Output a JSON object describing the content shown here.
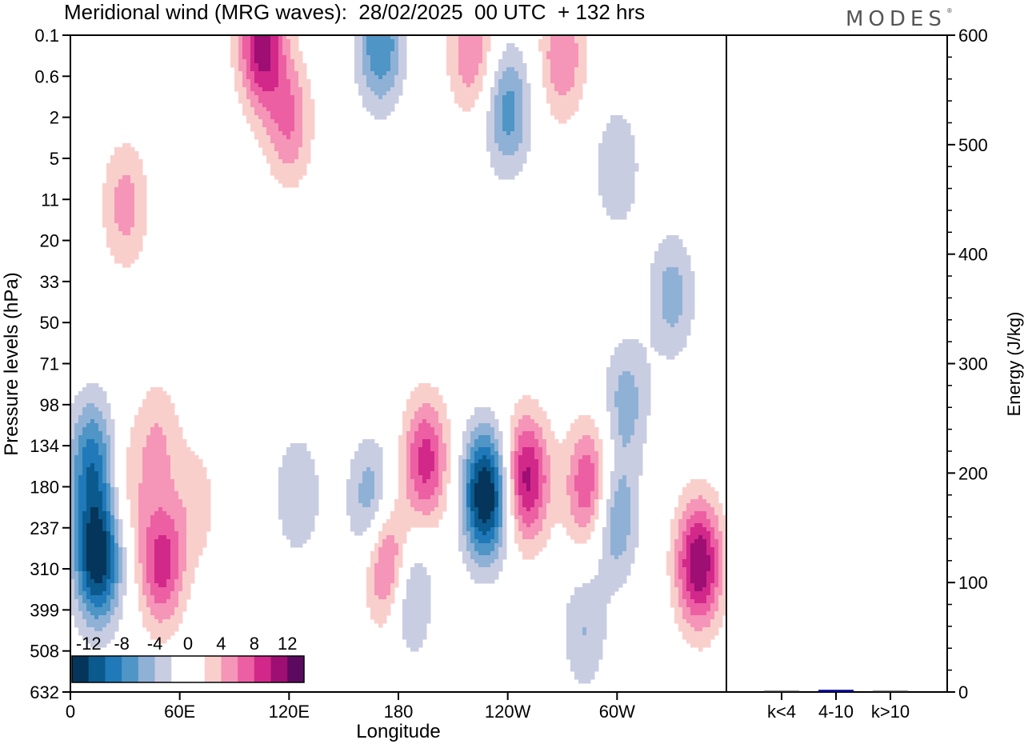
{
  "header": {
    "title": "Meridional wind (MRG waves):  28/02/2025  00 UTC  + 132 hrs",
    "brand": "MODES",
    "brand_mark": "®"
  },
  "chart_data": [
    {
      "type": "heatmap",
      "xlabel": "Longitude",
      "ylabel": "Pressure levels (hPa)",
      "x_ticks": [
        "0",
        "60E",
        "120E",
        "180",
        "120W",
        "60W"
      ],
      "y_ticks": [
        "0.1",
        "0.6",
        "2",
        "5",
        "11",
        "20",
        "33",
        "50",
        "71",
        "98",
        "134",
        "180",
        "237",
        "310",
        "399",
        "508",
        "632"
      ],
      "colorbar": {
        "labels": [
          "-12",
          "-8",
          "-4",
          "0",
          "4",
          "8",
          "12"
        ],
        "levels": [
          -14,
          -12,
          -10,
          -8,
          -6,
          -4,
          -2,
          0,
          2,
          4,
          6,
          8,
          10,
          12,
          14
        ],
        "colors": [
          "#05355a",
          "#0b5a8e",
          "#2079b8",
          "#4f95c5",
          "#8fb1d6",
          "#c9cde2",
          "#ffffff",
          "#ffffff",
          "#f9cfcc",
          "#f595b7",
          "#ec5fa3",
          "#d2288a",
          "#9e0e73",
          "#5c0a60"
        ]
      },
      "blobs": [
        {
          "lon": 15,
          "p": 290,
          "value": -14
        },
        {
          "lon": 12,
          "p": 150,
          "value": -9
        },
        {
          "lon": 30,
          "p": 180,
          "value": 3
        },
        {
          "lon": 50,
          "p": 300,
          "value": 9
        },
        {
          "lon": 48,
          "p": 130,
          "value": 4
        },
        {
          "lon": 70,
          "p": 200,
          "value": 3
        },
        {
          "lon": 95,
          "p": 170,
          "value": -2
        },
        {
          "lon": 125,
          "p": 190,
          "value": -4
        },
        {
          "lon": 165,
          "p": 200,
          "value": -6
        },
        {
          "lon": 175,
          "p": 300,
          "value": 10
        },
        {
          "lon": 185,
          "p": 350,
          "value": -7
        },
        {
          "lon": 195,
          "p": 150,
          "value": 9
        },
        {
          "lon": 228,
          "p": 190,
          "value": -15
        },
        {
          "lon": 250,
          "p": 170,
          "value": 11
        },
        {
          "lon": 285,
          "p": 180,
          "value": 9
        },
        {
          "lon": 298,
          "p": 220,
          "value": -7
        },
        {
          "lon": 345,
          "p": 300,
          "value": 12
        },
        {
          "lon": 282,
          "p": 450,
          "value": -4
        },
        {
          "lon": 305,
          "p": 95,
          "value": -5
        },
        {
          "lon": 105,
          "p": 0.15,
          "value": 11
        },
        {
          "lon": 170,
          "p": 0.15,
          "value": -8
        },
        {
          "lon": 220,
          "p": 0.2,
          "value": 6
        },
        {
          "lon": 270,
          "p": 0.25,
          "value": 6
        },
        {
          "lon": 120,
          "p": 2.2,
          "value": 6
        },
        {
          "lon": 240,
          "p": 1.6,
          "value": -7
        },
        {
          "lon": 30,
          "p": 12,
          "value": 5
        },
        {
          "lon": 80,
          "p": 30,
          "value": 2
        },
        {
          "lon": 300,
          "p": 6,
          "value": -4
        },
        {
          "lon": 330,
          "p": 38,
          "value": -5
        }
      ],
      "xlim": [
        0,
        360
      ],
      "ylim": [
        0.1,
        632
      ]
    },
    {
      "type": "bar",
      "categories": [
        "k<4",
        "4-10",
        "k>10"
      ],
      "values": [
        0,
        2,
        0
      ],
      "ylabel": "Energy (J/kg)",
      "y_ticks": [
        "0",
        "100",
        "200",
        "300",
        "400",
        "500",
        "600"
      ],
      "ylim": [
        0,
        600
      ],
      "bar_color": "#00008b"
    }
  ]
}
